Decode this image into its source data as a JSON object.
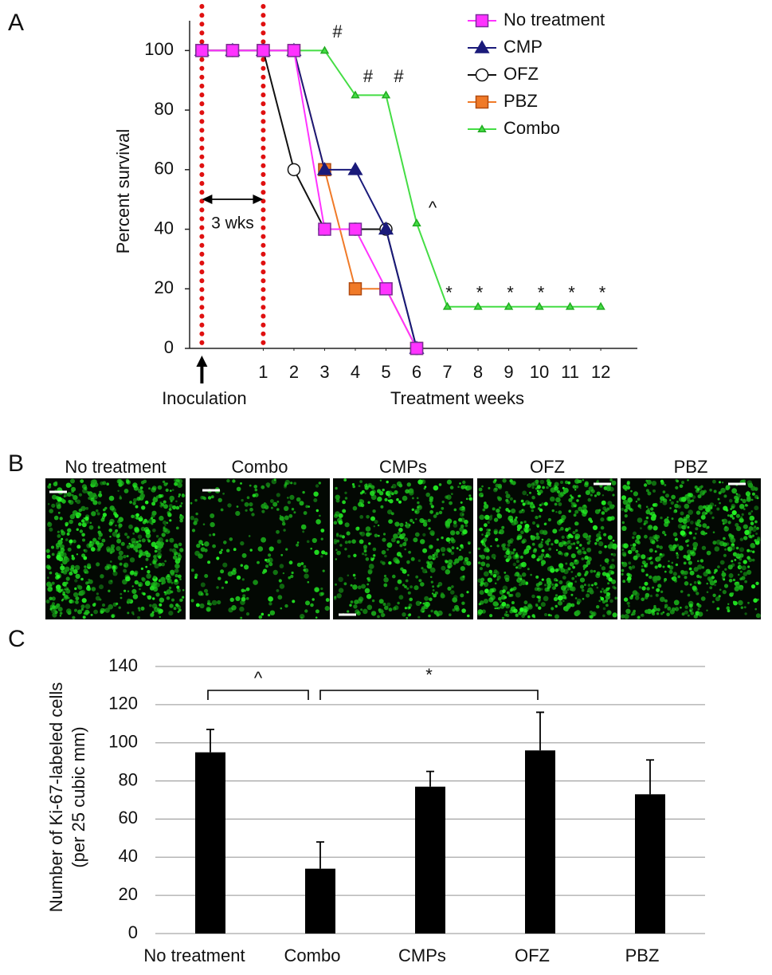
{
  "panel_labels": [
    "A",
    "B",
    "C"
  ],
  "chart_data": [
    {
      "type": "line",
      "x": [
        -1,
        0,
        1,
        2,
        3,
        4,
        5,
        6,
        7,
        8,
        9,
        10,
        11,
        12
      ],
      "series": [
        {
          "name": "No treatment",
          "color": "#ff33ff",
          "marker": "square",
          "fill": "#ff33ff",
          "edge": "#7a2d9a",
          "values": [
            100,
            100,
            100,
            100,
            40,
            40,
            20,
            0,
            null,
            null,
            null,
            null,
            null,
            null
          ]
        },
        {
          "name": "CMP",
          "color": "#1a1a7a",
          "marker": "triangle",
          "fill": "#1a1a7a",
          "edge": "#1a1a7a",
          "values": [
            100,
            100,
            100,
            100,
            60,
            60,
            40,
            0,
            null,
            null,
            null,
            null,
            null,
            null
          ]
        },
        {
          "name": "OFZ",
          "color": "#111111",
          "marker": "circle",
          "fill": "#ffffff",
          "edge": "#111111",
          "values": [
            100,
            100,
            100,
            60,
            40,
            40,
            40,
            0,
            null,
            null,
            null,
            null,
            null,
            null
          ]
        },
        {
          "name": "PBZ",
          "color": "#f07a28",
          "marker": "square",
          "fill": "#f07a28",
          "edge": "#b04a10",
          "values": [
            100,
            100,
            100,
            100,
            60,
            20,
            20,
            0,
            null,
            null,
            null,
            null,
            null,
            null
          ]
        },
        {
          "name": "Combo",
          "color": "#44dd44",
          "marker": "triangle",
          "fill": "#44dd44",
          "edge": "#22aa22",
          "values": [
            100,
            100,
            100,
            100,
            100,
            85,
            85,
            42,
            14,
            14,
            14,
            14,
            14,
            14
          ]
        }
      ],
      "xlim": [
        -1.4,
        13.4
      ],
      "xticks": [
        1,
        2,
        3,
        4,
        5,
        6,
        7,
        8,
        9,
        10,
        11,
        12
      ],
      "ylim": [
        0,
        110
      ],
      "yticks": [
        0,
        20,
        40,
        60,
        80,
        100
      ],
      "xlabel": "Treatment weeks",
      "ylabel": "Percent survival",
      "inoculation_label": "Inoculation",
      "interval_label": "3 wks",
      "annotations": [
        "#",
        "#",
        "#",
        "^",
        "*",
        "*",
        "*",
        "*",
        "*",
        "*"
      ],
      "legend": "upper right"
    },
    {
      "type": "bar",
      "categories": [
        "No treatment",
        "Combo",
        "CMPs",
        "OFZ",
        "PBZ"
      ],
      "values": [
        95,
        34,
        77,
        96,
        73
      ],
      "errors": [
        12,
        14,
        8,
        20,
        18
      ],
      "color": "#000000",
      "ylim": [
        0,
        140
      ],
      "yticks": [
        0,
        20,
        40,
        60,
        80,
        100,
        120,
        140
      ],
      "grid": true,
      "ylabel": [
        "Number of Ki-67-labeled cells",
        "(per 25 cubic mm)"
      ],
      "annotations": [
        "^",
        "*"
      ]
    }
  ],
  "image_panel": {
    "titles": [
      "No treatment",
      "Combo",
      "CMPs",
      "OFZ",
      "PBZ"
    ]
  }
}
